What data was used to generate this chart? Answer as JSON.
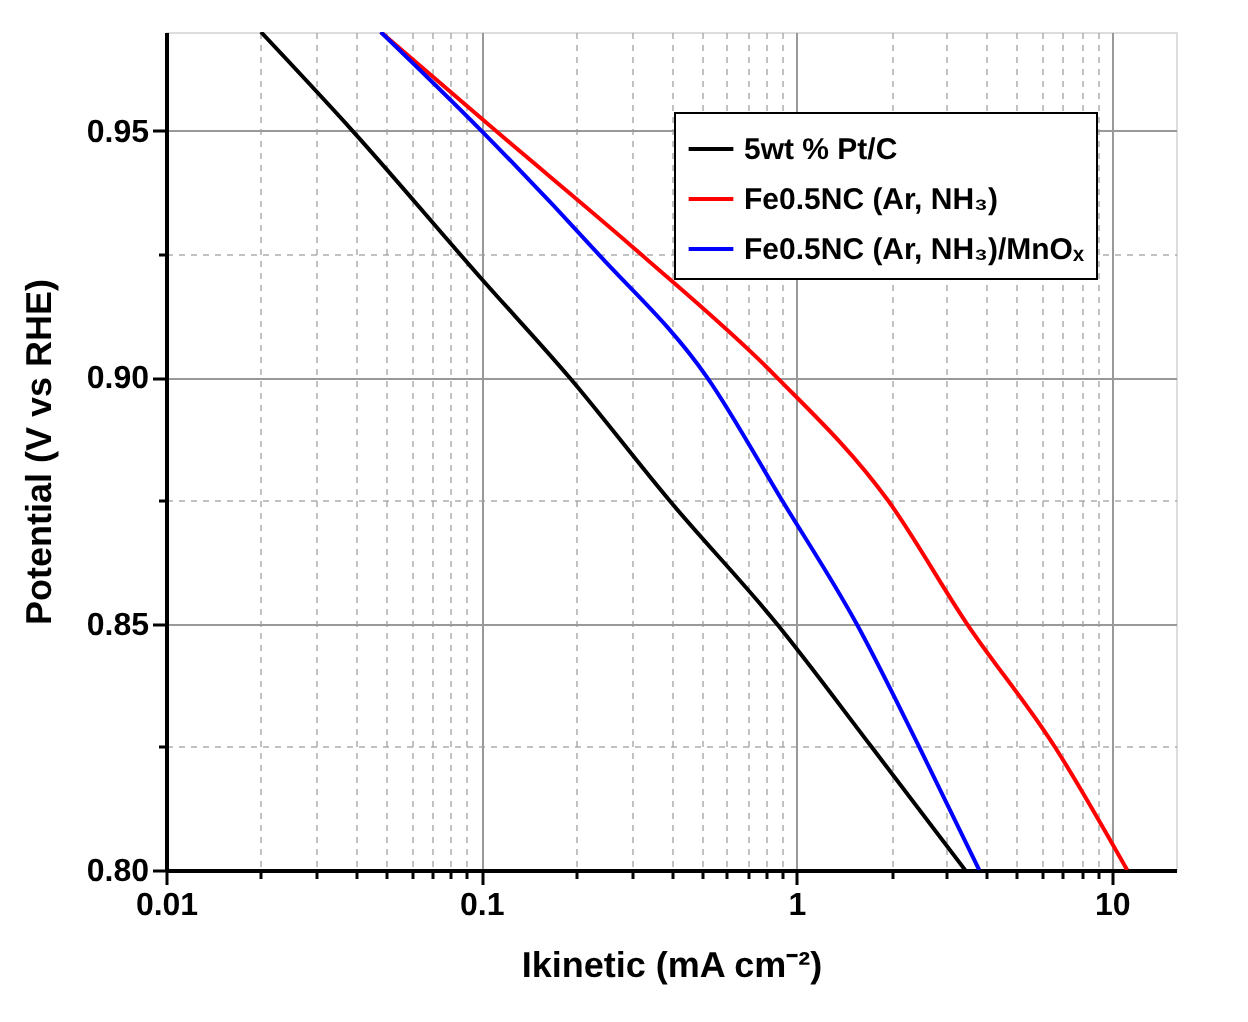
{
  "chart_data": {
    "type": "line",
    "xlabel": "Ikinetic (mA cm⁻²)",
    "ylabel": "Potential (V vs RHE)",
    "log": "x",
    "xlim": [
      0.01,
      16
    ],
    "ylim": [
      0.8,
      0.97
    ],
    "xticks": [
      0.01,
      {
        "value": 0.02,
        "label": null
      },
      {
        "value": 0.03,
        "label": null
      },
      {
        "value": 0.04,
        "label": null
      },
      {
        "value": 0.05,
        "label": null
      },
      {
        "value": 0.06,
        "label": null
      },
      {
        "value": 0.07,
        "label": null
      },
      {
        "value": 0.08,
        "label": null
      },
      {
        "value": 0.09,
        "label": null
      },
      0.1,
      {
        "value": 0.2,
        "label": null
      },
      {
        "value": 0.3,
        "label": null
      },
      {
        "value": 0.4,
        "label": null
      },
      {
        "value": 0.5,
        "label": null
      },
      {
        "value": 0.6,
        "label": null
      },
      {
        "value": 0.7,
        "label": null
      },
      {
        "value": 0.8,
        "label": null
      },
      {
        "value": 0.9,
        "label": null
      },
      1,
      {
        "value": 2,
        "label": null
      },
      {
        "value": 3,
        "label": null
      },
      {
        "value": 4,
        "label": null
      },
      {
        "value": 5,
        "label": null
      },
      {
        "value": 6,
        "label": null
      },
      {
        "value": 7,
        "label": null
      },
      {
        "value": 8,
        "label": null
      },
      {
        "value": 9,
        "label": null
      },
      10
    ],
    "yticks": [
      {
        "value": 0.8,
        "label": "0.80"
      },
      {
        "value": 0.825,
        "label": null
      },
      {
        "value": 0.85,
        "label": "0.85"
      },
      {
        "value": 0.875,
        "label": null
      },
      {
        "value": 0.9,
        "label": "0.90"
      },
      {
        "value": 0.925,
        "label": null
      },
      {
        "value": 0.95,
        "label": "0.95"
      }
    ],
    "grid": true,
    "legend": "top right",
    "line_style": "solid",
    "marker": "none",
    "series": [
      {
        "name": "5wt % Pt/C",
        "color": "#000000",
        "x": [
          0.02,
          0.039,
          0.1,
          0.19,
          0.395,
          0.865,
          1.73,
          3.43
        ],
        "values": [
          0.97,
          0.95,
          0.92,
          0.9,
          0.875,
          0.85,
          0.825,
          0.8
        ]
      },
      {
        "name": "Fe0.5NC (Ar, NH₃)",
        "color": "#ff0000",
        "x": [
          0.048,
          0.111,
          0.32,
          0.865,
          1.95,
          3.47,
          6.6,
          11.2
        ],
        "values": [
          0.97,
          0.95,
          0.925,
          0.9,
          0.875,
          0.85,
          0.825,
          0.8
        ]
      },
      {
        "name": "Fe0.5NC (Ar, NH₃)/MnOₓ",
        "color": "#0000ff",
        "x": [
          0.048,
          0.1,
          0.235,
          0.52,
          0.9,
          1.55,
          2.45,
          3.8
        ],
        "values": [
          0.97,
          0.95,
          0.925,
          0.9,
          0.875,
          0.85,
          0.825,
          0.8
        ]
      }
    ]
  }
}
